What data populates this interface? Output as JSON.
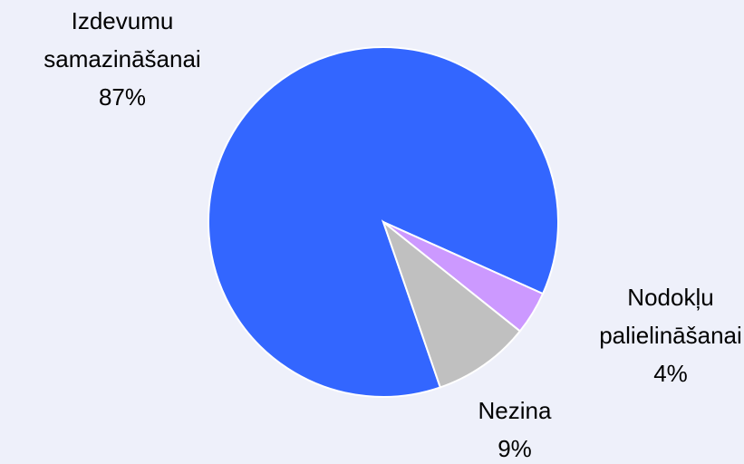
{
  "chart_data": {
    "type": "pie",
    "categories": [
      "Izdevumu samazināšanai",
      "Nodokļu palielināšanai",
      "Nezina"
    ],
    "values": [
      87,
      4,
      9
    ],
    "value_labels": [
      "87%",
      "4%",
      "9%"
    ],
    "colors": [
      "#3366ff",
      "#cc99ff",
      "#c0c0c0"
    ]
  }
}
